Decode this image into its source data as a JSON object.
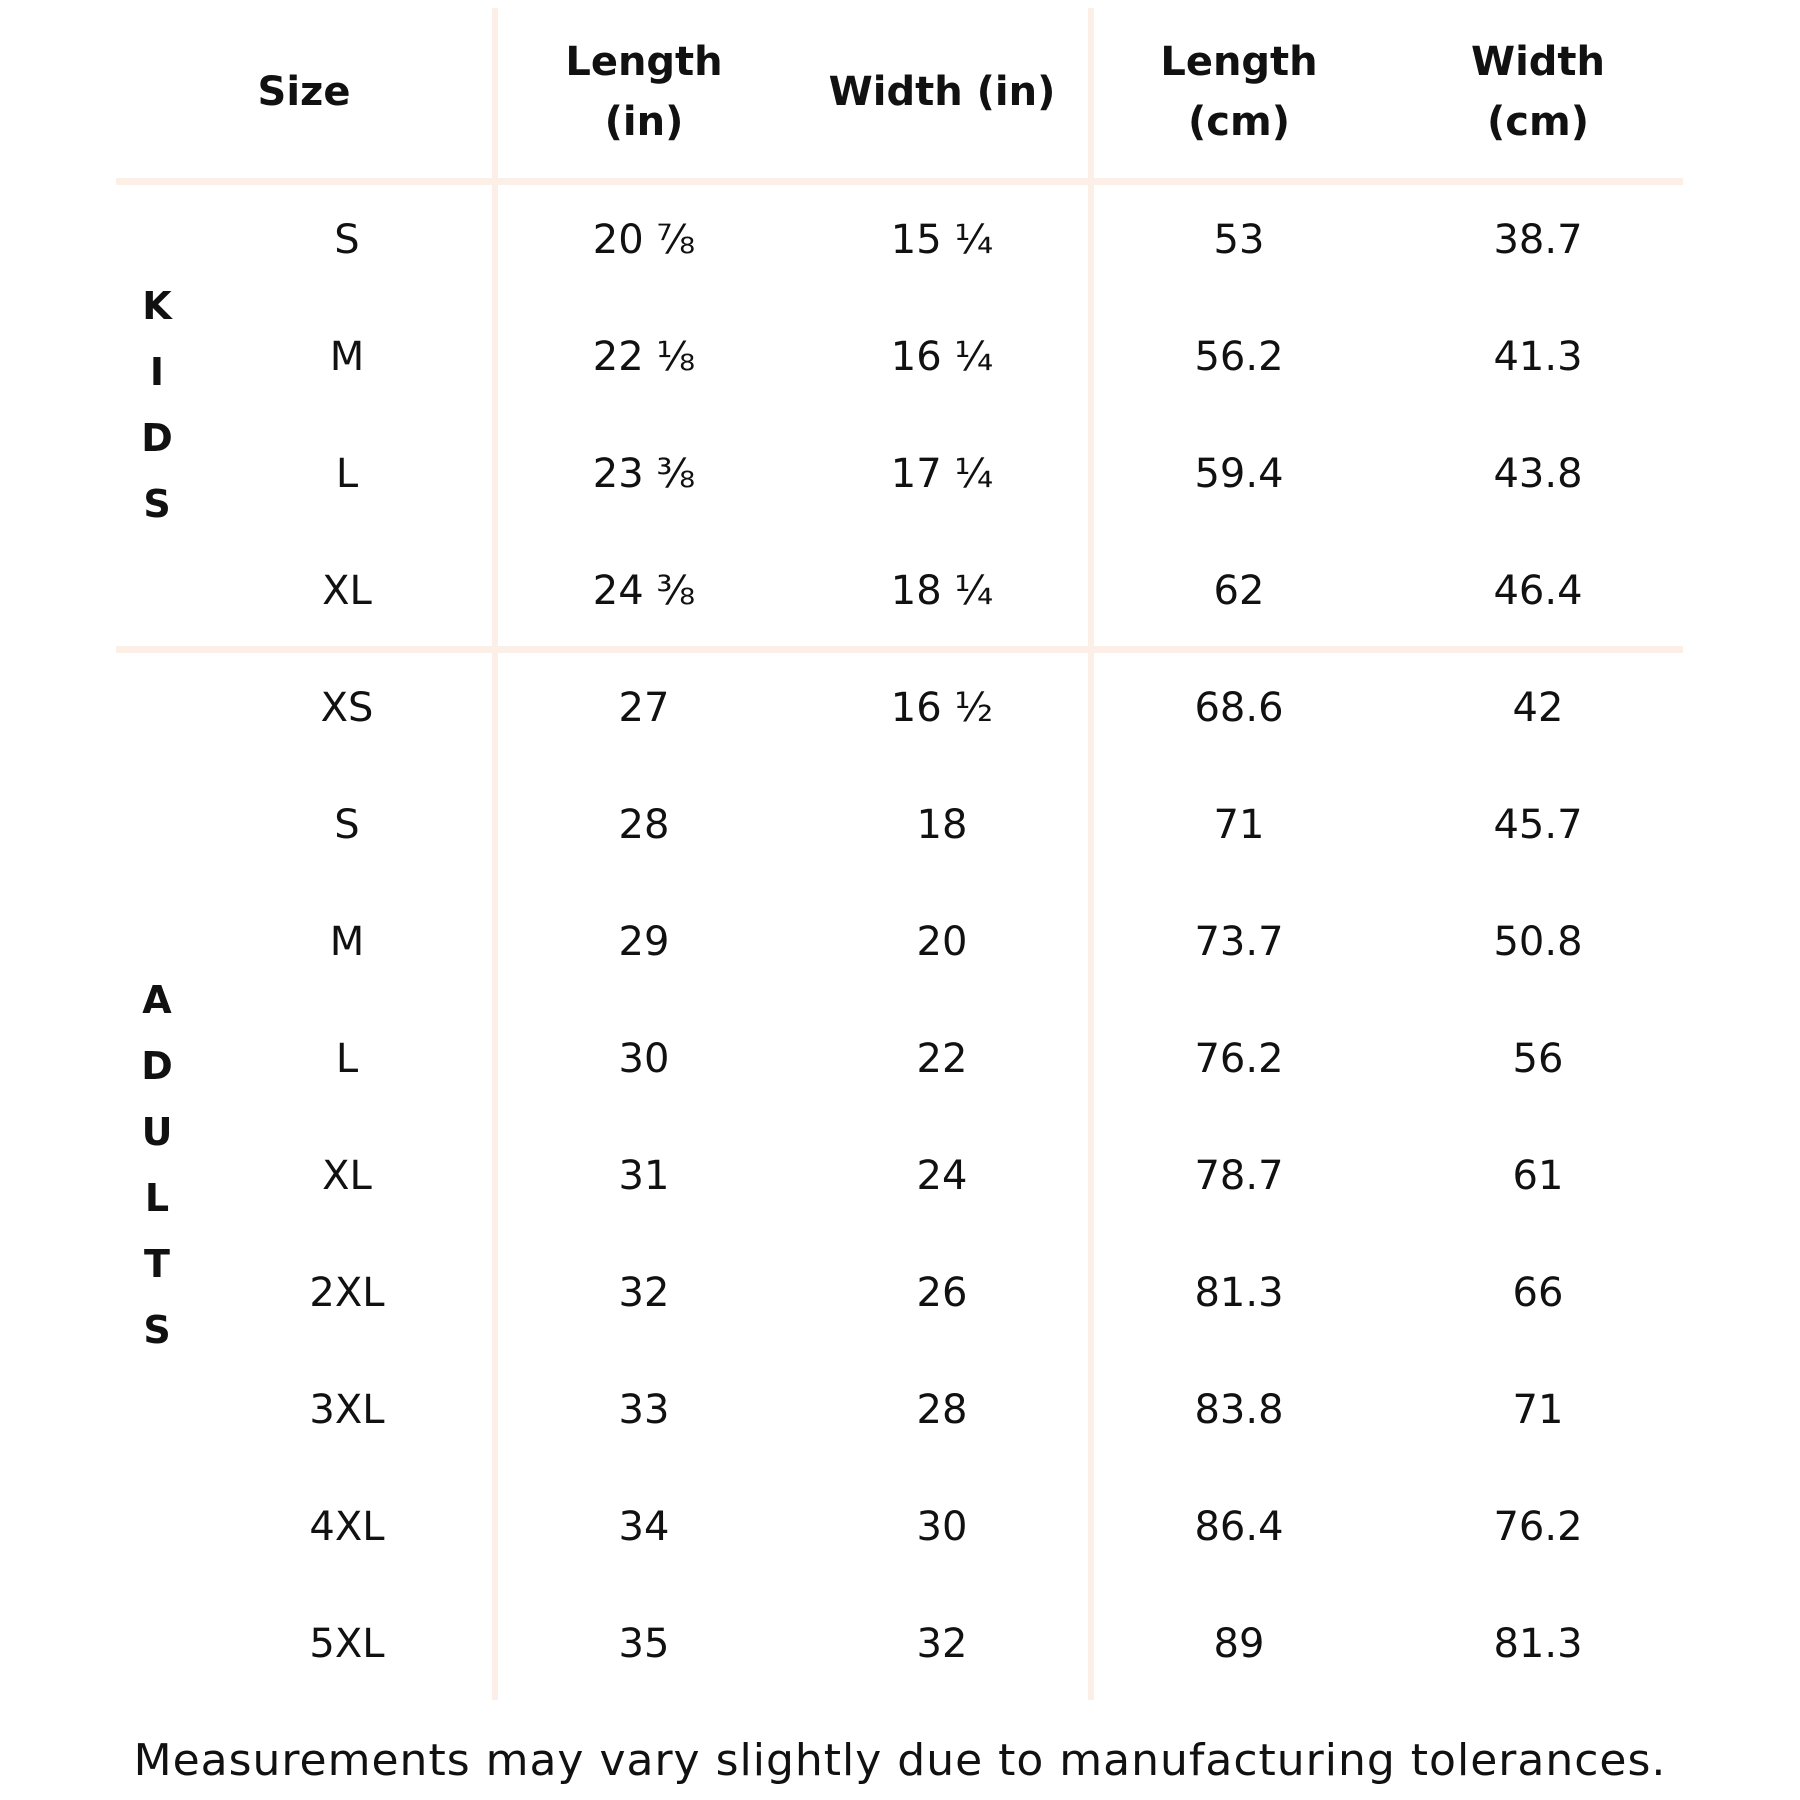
{
  "table": {
    "columns": [
      "Size",
      "Length (in)",
      "Width (in)",
      "Length (cm)",
      "Width (cm)"
    ],
    "groups": [
      {
        "label": "KIDS",
        "rows": [
          [
            "S",
            "20 ⅞",
            "15 ¼",
            "53",
            "38.7"
          ],
          [
            "M",
            "22 ⅛",
            "16 ¼",
            "56.2",
            "41.3"
          ],
          [
            "L",
            "23 ⅜",
            "17 ¼",
            "59.4",
            "43.8"
          ],
          [
            "XL",
            "24 ⅜",
            "18 ¼",
            "62",
            "46.4"
          ]
        ]
      },
      {
        "label": "ADULTS",
        "rows": [
          [
            "XS",
            "27",
            "16 ½",
            "68.6",
            "42"
          ],
          [
            "S",
            "28",
            "18",
            "71",
            "45.7"
          ],
          [
            "M",
            "29",
            "20",
            "73.7",
            "50.8"
          ],
          [
            "L",
            "30",
            "22",
            "76.2",
            "56"
          ],
          [
            "XL",
            "31",
            "24",
            "78.7",
            "61"
          ],
          [
            "2XL",
            "32",
            "26",
            "81.3",
            "66"
          ],
          [
            "3XL",
            "33",
            "28",
            "83.8",
            "71"
          ],
          [
            "4XL",
            "34",
            "30",
            "86.4",
            "76.2"
          ],
          [
            "5XL",
            "35",
            "32",
            "89",
            "81.3"
          ]
        ]
      }
    ]
  },
  "footer": {
    "note": "Measurements may vary slightly due to manufacturing tolerances."
  }
}
